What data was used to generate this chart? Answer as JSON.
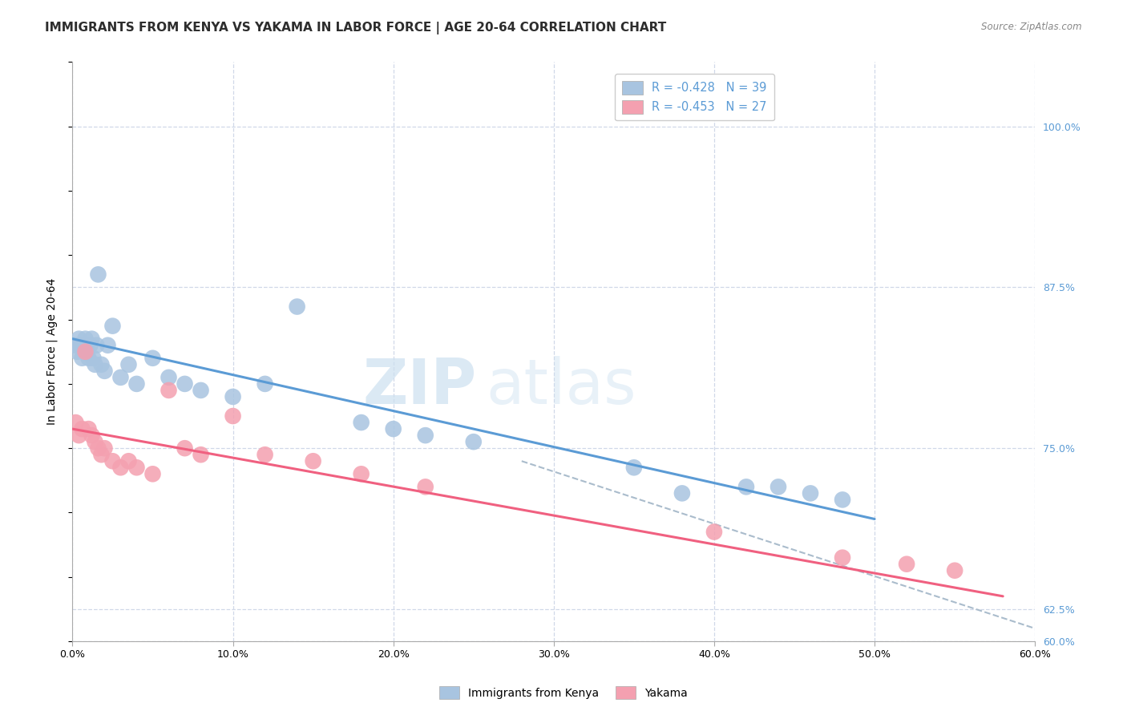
{
  "title": "IMMIGRANTS FROM KENYA VS YAKAMA IN LABOR FORCE | AGE 20-64 CORRELATION CHART",
  "source": "Source: ZipAtlas.com",
  "ylabel": "In Labor Force | Age 20-64",
  "x_tick_vals": [
    0.0,
    10.0,
    20.0,
    30.0,
    40.0,
    50.0,
    60.0
  ],
  "xlim": [
    0.0,
    60.0
  ],
  "ylim": [
    60.0,
    105.0
  ],
  "right_ytick_vals": [
    100.0,
    87.5,
    75.0,
    62.5,
    60.0
  ],
  "kenya_R": -0.428,
  "kenya_N": 39,
  "yakama_R": -0.453,
  "yakama_N": 27,
  "kenya_color": "#a8c4e0",
  "yakama_color": "#f4a0b0",
  "kenya_line_color": "#5b9bd5",
  "yakama_line_color": "#f06080",
  "dashed_line_color": "#aabccc",
  "background_color": "#ffffff",
  "grid_color": "#d0d8e8",
  "legend_label_kenya": "Immigrants from Kenya",
  "legend_label_yakama": "Yakama",
  "kenya_scatter_x": [
    0.2,
    0.3,
    0.4,
    0.5,
    0.6,
    0.7,
    0.8,
    0.9,
    1.0,
    1.1,
    1.2,
    1.3,
    1.4,
    1.5,
    1.6,
    1.8,
    2.0,
    2.2,
    2.5,
    3.0,
    3.5,
    4.0,
    5.0,
    6.0,
    7.0,
    8.0,
    10.0,
    12.0,
    14.0,
    18.0,
    20.0,
    22.0,
    25.0,
    35.0,
    38.0,
    42.0,
    44.0,
    46.0,
    48.0
  ],
  "kenya_scatter_y": [
    83.0,
    82.5,
    83.5,
    83.0,
    82.0,
    83.0,
    83.5,
    82.5,
    82.0,
    83.0,
    83.5,
    82.0,
    81.5,
    83.0,
    88.5,
    81.5,
    81.0,
    83.0,
    84.5,
    80.5,
    81.5,
    80.0,
    82.0,
    80.5,
    80.0,
    79.5,
    79.0,
    80.0,
    86.0,
    77.0,
    76.5,
    76.0,
    75.5,
    73.5,
    71.5,
    72.0,
    72.0,
    71.5,
    71.0
  ],
  "yakama_scatter_x": [
    0.2,
    0.4,
    0.6,
    0.8,
    1.0,
    1.2,
    1.4,
    1.6,
    1.8,
    2.0,
    2.5,
    3.0,
    3.5,
    4.0,
    5.0,
    6.0,
    7.0,
    8.0,
    10.0,
    12.0,
    15.0,
    18.0,
    22.0,
    40.0,
    48.0,
    52.0,
    55.0
  ],
  "yakama_scatter_y": [
    77.0,
    76.0,
    76.5,
    82.5,
    76.5,
    76.0,
    75.5,
    75.0,
    74.5,
    75.0,
    74.0,
    73.5,
    74.0,
    73.5,
    73.0,
    79.5,
    75.0,
    74.5,
    77.5,
    74.5,
    74.0,
    73.0,
    72.0,
    68.5,
    66.5,
    66.0,
    65.5
  ],
  "kenya_line_x0": 0.0,
  "kenya_line_y0": 83.5,
  "kenya_line_x1": 50.0,
  "kenya_line_y1": 69.5,
  "yakama_line_x0": 0.0,
  "yakama_line_y0": 76.5,
  "yakama_line_x1": 58.0,
  "yakama_line_y1": 63.5,
  "dashed_line_x0": 28.0,
  "dashed_line_y0": 74.0,
  "dashed_line_x1": 60.0,
  "dashed_line_y1": 61.0,
  "title_fontsize": 11,
  "axis_label_fontsize": 10,
  "tick_fontsize": 9
}
